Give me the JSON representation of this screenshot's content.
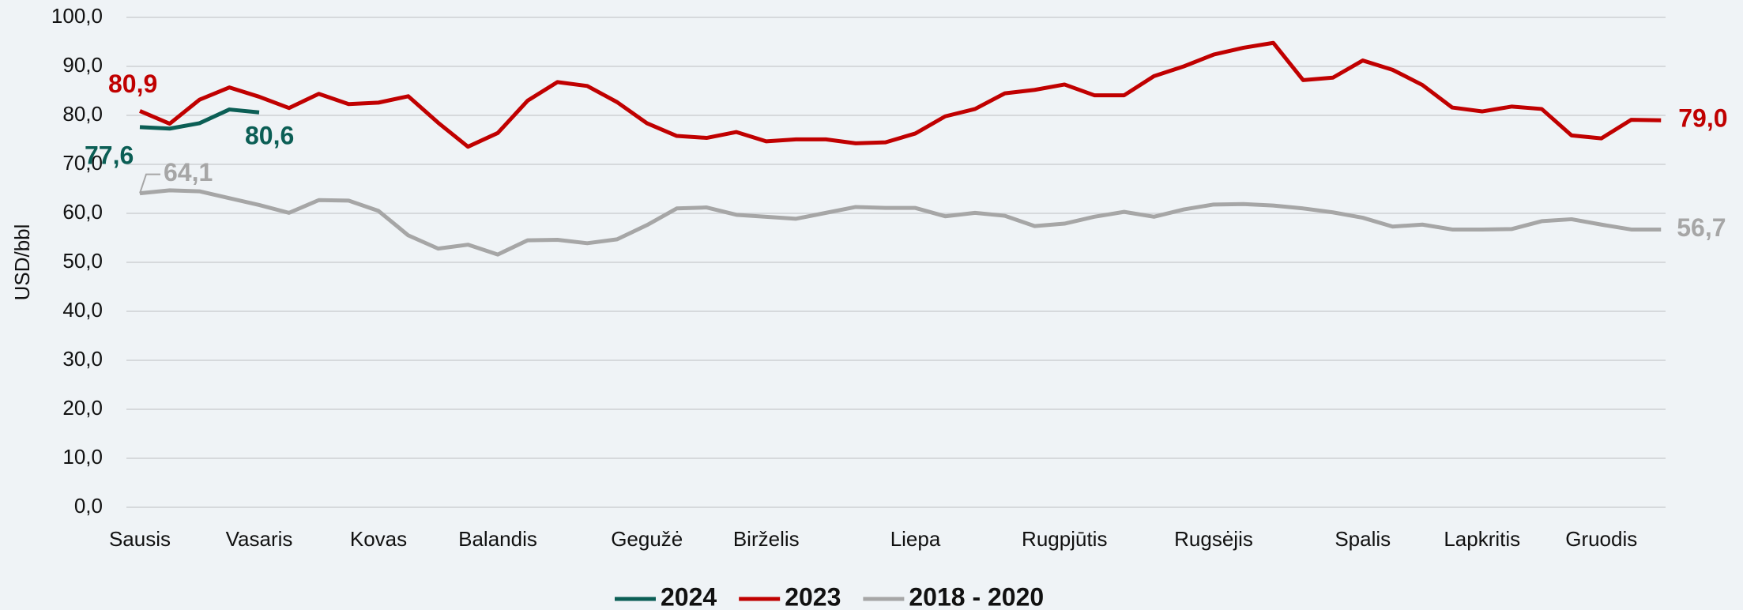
{
  "chart_data": {
    "type": "line",
    "y_label": "USD/bbl",
    "categories": [
      "Sausis",
      null,
      null,
      null,
      "Vasaris",
      null,
      null,
      null,
      "Kovas",
      null,
      null,
      null,
      "Balandis",
      null,
      null,
      null,
      null,
      "Gegužė",
      null,
      null,
      null,
      "Birželis",
      null,
      null,
      null,
      null,
      "Liepa",
      null,
      null,
      null,
      null,
      "Rugpjūtis",
      null,
      null,
      null,
      null,
      "Rugsėjis",
      null,
      null,
      null,
      null,
      "Spalis",
      null,
      null,
      null,
      "Lapkritis",
      null,
      null,
      null,
      "Gruodis",
      null,
      null
    ],
    "ylim": [
      0,
      100
    ],
    "yticks": [
      {
        "value": 0,
        "label": "0,0"
      },
      {
        "value": 10,
        "label": "10,0"
      },
      {
        "value": 20,
        "label": "20,0"
      },
      {
        "value": 30,
        "label": "30,0"
      },
      {
        "value": 40,
        "label": "40,0"
      },
      {
        "value": 50,
        "label": "50,0"
      },
      {
        "value": 60,
        "label": "60,0"
      },
      {
        "value": 70,
        "label": "70,0"
      },
      {
        "value": 80,
        "label": "80,0"
      },
      {
        "value": 90,
        "label": "90,0"
      },
      {
        "value": 100,
        "label": "100,0"
      }
    ],
    "grid": true,
    "legend": "bottom",
    "series": [
      {
        "name": "2024",
        "color": "#0b5e55",
        "values": [
          77.6,
          77.3,
          78.4,
          81.2,
          80.6,
          null,
          null,
          null,
          null,
          null,
          null,
          null,
          null,
          null,
          null,
          null,
          null,
          null,
          null,
          null,
          null,
          null,
          null,
          null,
          null,
          null,
          null,
          null,
          null,
          null,
          null,
          null,
          null,
          null,
          null,
          null,
          null,
          null,
          null,
          null,
          null,
          null,
          null,
          null,
          null,
          null,
          null,
          null,
          null,
          null,
          null,
          null
        ],
        "value_labels": [
          "77,6",
          null,
          null,
          null,
          "80,6",
          null,
          null,
          null,
          null,
          null,
          null,
          null,
          null,
          null,
          null,
          null,
          null,
          null,
          null,
          null,
          null,
          null,
          null,
          null,
          null,
          null,
          null,
          null,
          null,
          null,
          null,
          null,
          null,
          null,
          null,
          null,
          null,
          null,
          null,
          null,
          null,
          null,
          null,
          null,
          null,
          null,
          null,
          null,
          null,
          null,
          null,
          null
        ]
      },
      {
        "name": "2023",
        "color": "#c00000",
        "values": [
          80.9,
          78.3,
          83.2,
          85.7,
          83.8,
          81.5,
          84.4,
          82.3,
          82.6,
          83.9,
          78.5,
          73.6,
          76.4,
          83.0,
          86.8,
          86.0,
          82.7,
          78.4,
          75.8,
          75.4,
          76.6,
          74.7,
          75.1,
          75.1,
          74.3,
          74.5,
          76.3,
          79.8,
          81.3,
          84.5,
          85.2,
          86.3,
          84.1,
          84.1,
          88.0,
          90.0,
          92.4,
          93.8,
          94.8,
          87.2,
          87.7,
          91.2,
          89.3,
          86.2,
          81.6,
          80.8,
          81.8,
          81.3,
          75.9,
          75.3,
          79.1,
          79.0
        ],
        "value_labels": [
          "80,9",
          null,
          null,
          null,
          null,
          null,
          null,
          null,
          null,
          null,
          null,
          null,
          null,
          null,
          null,
          null,
          null,
          null,
          null,
          null,
          null,
          null,
          null,
          null,
          null,
          null,
          null,
          null,
          null,
          null,
          null,
          null,
          null,
          null,
          null,
          null,
          null,
          null,
          null,
          null,
          null,
          null,
          null,
          null,
          null,
          null,
          null,
          null,
          null,
          null,
          null,
          "79,0"
        ]
      },
      {
        "name": "2018 - 2020",
        "color": "#a6a6a6",
        "values": [
          64.1,
          64.7,
          64.5,
          63.1,
          61.7,
          60.1,
          62.7,
          62.6,
          60.5,
          55.5,
          52.8,
          53.6,
          51.6,
          54.5,
          54.6,
          53.9,
          54.7,
          57.6,
          61.0,
          61.2,
          59.7,
          59.3,
          58.9,
          60.1,
          61.3,
          61.1,
          61.1,
          59.4,
          60.1,
          59.5,
          57.4,
          57.9,
          59.3,
          60.3,
          59.3,
          60.8,
          61.8,
          61.9,
          61.6,
          61.0,
          60.2,
          59.1,
          57.3,
          57.7,
          56.7,
          56.7,
          56.8,
          58.4,
          58.8,
          57.7,
          56.7,
          56.7
        ],
        "value_labels": [
          "64,1",
          null,
          null,
          null,
          null,
          null,
          null,
          null,
          null,
          null,
          null,
          null,
          null,
          null,
          null,
          null,
          null,
          null,
          null,
          null,
          null,
          null,
          null,
          null,
          null,
          null,
          null,
          null,
          null,
          null,
          null,
          null,
          null,
          null,
          null,
          null,
          null,
          null,
          null,
          null,
          null,
          null,
          null,
          null,
          null,
          null,
          null,
          null,
          null,
          null,
          null,
          "56,7"
        ]
      }
    ]
  }
}
